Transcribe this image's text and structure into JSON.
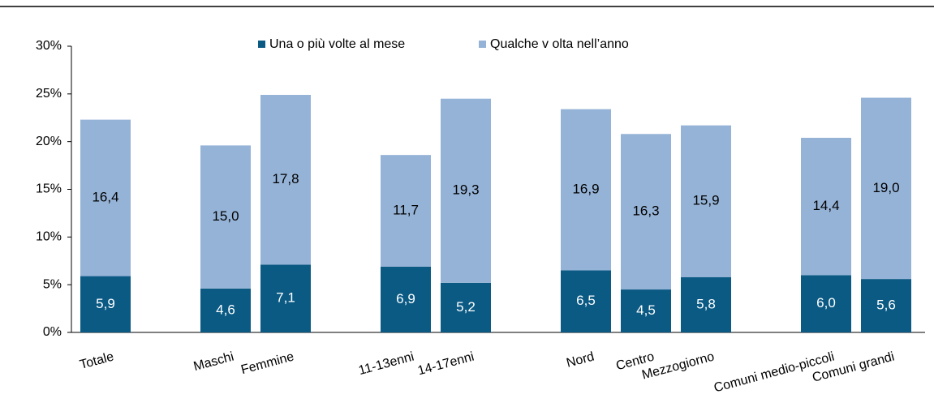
{
  "chart_data": {
    "type": "bar",
    "stacked": true,
    "categories": [
      "Totale",
      null,
      "Maschi",
      "Femmine",
      null,
      "11-13enni",
      "14-17enni",
      null,
      "Nord",
      "Centro",
      "Mezzogiorno",
      null,
      "Comuni medio-piccoli",
      "Comuni grandi"
    ],
    "series": [
      {
        "name": "Una o più volte al mese",
        "color": "#0b5a84",
        "values": [
          5.9,
          null,
          4.6,
          7.1,
          null,
          6.9,
          5.2,
          null,
          6.5,
          4.5,
          5.8,
          null,
          6.0,
          5.6
        ],
        "value_labels": [
          "5,9",
          null,
          "4,6",
          "7,1",
          null,
          "6,9",
          "5,2",
          null,
          "6,5",
          "4,5",
          "5,8",
          null,
          "6,0",
          "5,6"
        ]
      },
      {
        "name": "Qualche v olta nell’anno",
        "color": "#95b3d7",
        "values": [
          16.4,
          null,
          15.0,
          17.8,
          null,
          11.7,
          19.3,
          null,
          16.9,
          16.3,
          15.9,
          null,
          14.4,
          19.0
        ],
        "value_labels": [
          "16,4",
          null,
          "15,0",
          "17,8",
          null,
          "11,7",
          "19,3",
          null,
          "16,9",
          "16,3",
          "15,9",
          null,
          "14,4",
          "19,0"
        ]
      }
    ],
    "ylim": [
      0,
      30
    ],
    "yticks": [
      {
        "value": 0,
        "label": "0%"
      },
      {
        "value": 5,
        "label": "5%"
      },
      {
        "value": 10,
        "label": "10%"
      },
      {
        "value": 15,
        "label": "15%"
      },
      {
        "value": 20,
        "label": "20%"
      },
      {
        "value": 25,
        "label": "25%"
      },
      {
        "value": 30,
        "label": "30%"
      }
    ],
    "legend": "top"
  }
}
